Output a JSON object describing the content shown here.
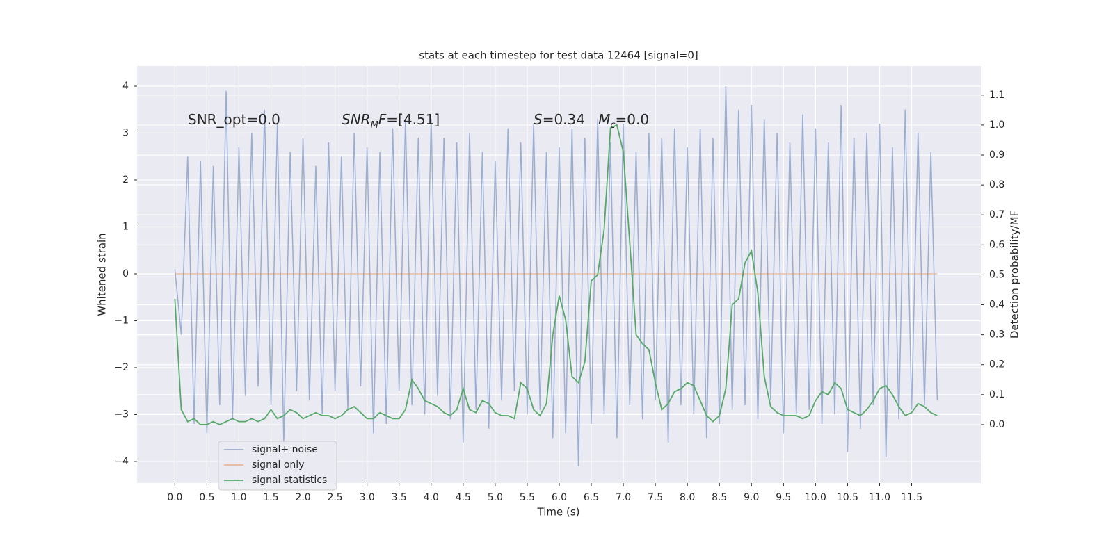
{
  "chart_data": {
    "type": "line",
    "title": "stats at each timestep for test data 12464 [signal=0]",
    "xlabel": "Time (s)",
    "ylabel": "Whitened strain",
    "y2label": "Detection probability/MF",
    "annotations": [
      {
        "runs": [
          {
            "text": "SNR_opt=0.0"
          }
        ]
      },
      {
        "runs": [
          {
            "text": "SNR",
            "italic": true
          },
          {
            "text": "M",
            "italic": true,
            "sub": true
          },
          {
            "text": "F",
            "italic": true
          },
          {
            "text": "=[4.51]"
          }
        ]
      },
      {
        "runs": [
          {
            "text": "S",
            "italic": true
          },
          {
            "text": "=0.34   "
          },
          {
            "text": "M",
            "italic": true
          },
          {
            "text": "c",
            "italic": true,
            "sub": true
          },
          {
            "text": "=0.0"
          }
        ]
      }
    ],
    "x": [
      0.0,
      0.1,
      0.2,
      0.3,
      0.4,
      0.5,
      0.6,
      0.7,
      0.8,
      0.9,
      1.0,
      1.1,
      1.2,
      1.3,
      1.4,
      1.5,
      1.6,
      1.7,
      1.8,
      1.9,
      2.0,
      2.1,
      2.2,
      2.3,
      2.4,
      2.5,
      2.6,
      2.7,
      2.8,
      2.9,
      3.0,
      3.1,
      3.2,
      3.3,
      3.4,
      3.5,
      3.6,
      3.7,
      3.8,
      3.9,
      4.0,
      4.1,
      4.2,
      4.3,
      4.4,
      4.5,
      4.6,
      4.7,
      4.8,
      4.9,
      5.0,
      5.1,
      5.2,
      5.3,
      5.4,
      5.5,
      5.6,
      5.7,
      5.8,
      5.9,
      6.0,
      6.1,
      6.2,
      6.3,
      6.4,
      6.5,
      6.6,
      6.7,
      6.8,
      6.9,
      7.0,
      7.1,
      7.2,
      7.3,
      7.4,
      7.5,
      7.6,
      7.7,
      7.8,
      7.9,
      8.0,
      8.1,
      8.2,
      8.3,
      8.4,
      8.5,
      8.6,
      8.7,
      8.8,
      8.9,
      9.0,
      9.1,
      9.2,
      9.3,
      9.4,
      9.5,
      9.6,
      9.7,
      9.8,
      9.9,
      10.0,
      10.1,
      10.2,
      10.3,
      10.4,
      10.5,
      10.6,
      10.7,
      10.8,
      10.9,
      11.0,
      11.1,
      11.2,
      11.3,
      11.4,
      11.5,
      11.6,
      11.7,
      11.8,
      11.9
    ],
    "series": [
      {
        "name": "signal+ noise",
        "color": "#4c72b0",
        "alpha": 0.5,
        "axis": "y",
        "values": [
          0.1,
          -1.3,
          2.5,
          -3.2,
          2.4,
          -3.4,
          2.3,
          -2.8,
          3.9,
          -3.1,
          2.7,
          -2.6,
          3.0,
          -2.4,
          3.5,
          -2.8,
          3.2,
          -3.6,
          2.6,
          -2.5,
          2.9,
          -2.7,
          2.3,
          -3.0,
          2.8,
          -2.5,
          2.5,
          -2.9,
          3.0,
          -2.4,
          2.7,
          -3.4,
          2.6,
          -3.2,
          3.1,
          -2.5,
          3.3,
          -2.8,
          2.9,
          -3.0,
          3.3,
          -2.6,
          2.9,
          -3.1,
          2.8,
          -3.6,
          3.0,
          -2.9,
          2.6,
          -3.3,
          2.4,
          -2.7,
          3.1,
          -2.5,
          2.8,
          -3.0,
          3.2,
          -2.9,
          2.6,
          -3.5,
          2.7,
          -3.4,
          3.1,
          -4.1,
          2.9,
          -3.2,
          3.3,
          -3.0,
          2.8,
          -3.5,
          3.2,
          -2.8,
          2.6,
          -3.1,
          3.0,
          -2.7,
          2.9,
          -3.6,
          3.1,
          -2.8,
          2.7,
          -3.0,
          3.1,
          -3.5,
          2.9,
          -3.2,
          4.0,
          -2.9,
          3.5,
          -2.8,
          3.6,
          -3.1,
          3.3,
          -2.7,
          3.0,
          -3.4,
          2.8,
          -3.0,
          3.4,
          -2.9,
          3.1,
          -3.2,
          2.8,
          -3.0,
          3.6,
          -3.8,
          2.9,
          -3.3,
          3.0,
          -2.8,
          3.2,
          -3.9,
          2.7,
          -3.1,
          3.5,
          -2.9,
          3.0,
          -2.8,
          2.6,
          -2.7
        ]
      },
      {
        "name": "signal only",
        "color": "#dd8452",
        "alpha": 0.5,
        "axis": "y",
        "values": [
          0,
          0,
          0,
          0,
          0,
          0,
          0,
          0,
          0,
          0,
          0,
          0,
          0,
          0,
          0,
          0,
          0,
          0,
          0,
          0,
          0,
          0,
          0,
          0,
          0,
          0,
          0,
          0,
          0,
          0,
          0,
          0,
          0,
          0,
          0,
          0,
          0,
          0,
          0,
          0,
          0,
          0,
          0,
          0,
          0,
          0,
          0,
          0,
          0,
          0,
          0,
          0,
          0,
          0,
          0,
          0,
          0,
          0,
          0,
          0,
          0,
          0,
          0,
          0,
          0,
          0,
          0,
          0,
          0,
          0,
          0,
          0,
          0,
          0,
          0,
          0,
          0,
          0,
          0,
          0,
          0,
          0,
          0,
          0,
          0,
          0,
          0,
          0,
          0,
          0,
          0,
          0,
          0,
          0,
          0,
          0,
          0,
          0,
          0,
          0,
          0,
          0,
          0,
          0,
          0,
          0,
          0,
          0,
          0,
          0,
          0,
          0,
          0,
          0,
          0,
          0,
          0,
          0,
          0,
          0
        ]
      },
      {
        "name": "signal statistics",
        "color": "#55a868",
        "alpha": 1,
        "axis": "y2",
        "values": [
          0.42,
          0.05,
          0.01,
          0.02,
          0.0,
          0.0,
          0.01,
          0.0,
          0.01,
          0.02,
          0.01,
          0.01,
          0.02,
          0.01,
          0.02,
          0.05,
          0.02,
          0.03,
          0.05,
          0.04,
          0.02,
          0.03,
          0.04,
          0.03,
          0.03,
          0.02,
          0.03,
          0.05,
          0.06,
          0.04,
          0.02,
          0.02,
          0.04,
          0.03,
          0.02,
          0.02,
          0.05,
          0.15,
          0.12,
          0.08,
          0.07,
          0.06,
          0.04,
          0.03,
          0.05,
          0.12,
          0.05,
          0.04,
          0.08,
          0.07,
          0.04,
          0.03,
          0.03,
          0.02,
          0.14,
          0.12,
          0.05,
          0.03,
          0.07,
          0.3,
          0.43,
          0.35,
          0.16,
          0.14,
          0.21,
          0.48,
          0.5,
          0.65,
          0.99,
          1.0,
          0.91,
          0.61,
          0.3,
          0.27,
          0.25,
          0.14,
          0.05,
          0.07,
          0.11,
          0.12,
          0.14,
          0.13,
          0.08,
          0.03,
          0.01,
          0.03,
          0.12,
          0.4,
          0.42,
          0.54,
          0.58,
          0.44,
          0.16,
          0.06,
          0.04,
          0.03,
          0.03,
          0.03,
          0.02,
          0.03,
          0.08,
          0.11,
          0.1,
          0.14,
          0.12,
          0.05,
          0.04,
          0.03,
          0.05,
          0.08,
          0.12,
          0.13,
          0.1,
          0.06,
          0.03,
          0.04,
          0.07,
          0.06,
          0.04,
          0.03
        ]
      }
    ],
    "xlim": [
      -0.59,
      12.58
    ],
    "ylim": [
      -4.46,
      4.43
    ],
    "y2lim": [
      -0.195,
      1.197
    ],
    "xticks": [
      {
        "value": 0,
        "label": "0.0"
      },
      {
        "value": 0.5,
        "label": "0.5"
      },
      {
        "value": 1,
        "label": "1.0"
      },
      {
        "value": 1.5,
        "label": "1.5"
      },
      {
        "value": 2,
        "label": "2.0"
      },
      {
        "value": 2.5,
        "label": "2.5"
      },
      {
        "value": 3,
        "label": "3.0"
      },
      {
        "value": 3.5,
        "label": "3.5"
      },
      {
        "value": 4,
        "label": "4.0"
      },
      {
        "value": 4.5,
        "label": "4.5"
      },
      {
        "value": 5,
        "label": "5.0"
      },
      {
        "value": 5.5,
        "label": "5.5"
      },
      {
        "value": 6,
        "label": "6.0"
      },
      {
        "value": 6.5,
        "label": "6.5"
      },
      {
        "value": 7,
        "label": "7.0"
      },
      {
        "value": 7.5,
        "label": "7.5"
      },
      {
        "value": 8,
        "label": "8.0"
      },
      {
        "value": 8.5,
        "label": "8.5"
      },
      {
        "value": 9,
        "label": "9.0"
      },
      {
        "value": 9.5,
        "label": "9.5"
      },
      {
        "value": 10,
        "label": "10.0"
      },
      {
        "value": 10.5,
        "label": "10.5"
      },
      {
        "value": 11,
        "label": "11.0"
      },
      {
        "value": 11.5,
        "label": "11.5"
      }
    ],
    "yticks": [
      {
        "value": -4,
        "label": "−4"
      },
      {
        "value": -3,
        "label": "−3"
      },
      {
        "value": -2,
        "label": "−2"
      },
      {
        "value": -1,
        "label": "−1"
      },
      0,
      1,
      2,
      3,
      4
    ],
    "y2ticks": [
      {
        "value": 0,
        "label": "0.0"
      },
      {
        "value": 0.1,
        "label": "0.1"
      },
      {
        "value": 0.2,
        "label": "0.2"
      },
      {
        "value": 0.3,
        "label": "0.3"
      },
      {
        "value": 0.4,
        "label": "0.4"
      },
      {
        "value": 0.5,
        "label": "0.5"
      },
      {
        "value": 0.6,
        "label": "0.6"
      },
      {
        "value": 0.7,
        "label": "0.7"
      },
      {
        "value": 0.8,
        "label": "0.8"
      },
      {
        "value": 0.9,
        "label": "0.9"
      },
      {
        "value": 1.0,
        "label": "1.0"
      },
      {
        "value": 1.1,
        "label": "1.1"
      }
    ],
    "grid": true,
    "legend": "lower left"
  }
}
